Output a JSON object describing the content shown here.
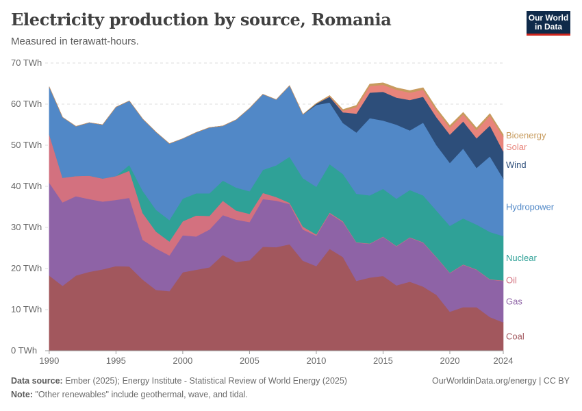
{
  "header": {
    "title": "Electricity production by source, Romania",
    "subtitle": "Measured in terawatt-hours."
  },
  "logo": {
    "line1": "Our World",
    "line2": "in Data"
  },
  "footer": {
    "source_label": "Data source:",
    "source_text": "Ember (2025); Energy Institute - Statistical Review of World Energy (2025)",
    "note_label": "Note:",
    "note_text": "\"Other renewables\" include geothermal, wave, and tidal.",
    "credit": "OurWorldinData.org/energy | CC BY"
  },
  "chart_data": {
    "type": "area",
    "stacked": true,
    "title": "Electricity production by source, Romania",
    "subtitle": "Measured in terawatt-hours.",
    "ylim": [
      0,
      70
    ],
    "yunit": "TWh",
    "y_ticks": [
      0,
      10,
      20,
      30,
      40,
      50,
      60,
      70
    ],
    "y_tick_labels": [
      "0 TWh",
      "10 TWh",
      "20 TWh",
      "30 TWh",
      "40 TWh",
      "50 TWh",
      "60 TWh",
      "70 TWh"
    ],
    "x_ticks": [
      1990,
      1995,
      2000,
      2005,
      2010,
      2015,
      2020,
      2024
    ],
    "x_tick_labels": [
      "1990",
      "1995",
      "2000",
      "2005",
      "2010",
      "2015",
      "2020",
      "2024"
    ],
    "x": [
      1990,
      1991,
      1992,
      1993,
      1994,
      1995,
      1996,
      1997,
      1998,
      1999,
      2000,
      2001,
      2002,
      2003,
      2004,
      2005,
      2006,
      2007,
      2008,
      2009,
      2010,
      2011,
      2012,
      2013,
      2014,
      2015,
      2016,
      2017,
      2018,
      2019,
      2020,
      2021,
      2022,
      2023,
      2024
    ],
    "series": [
      {
        "name": "Coal",
        "color": "#a2575d",
        "values": [
          18.3,
          15.8,
          18.3,
          19.2,
          19.8,
          20.6,
          20.5,
          17.3,
          14.8,
          14.5,
          19.1,
          19.7,
          20.3,
          23.3,
          21.6,
          22.0,
          25.3,
          25.2,
          25.9,
          21.9,
          20.6,
          24.8,
          22.8,
          17.0,
          17.8,
          18.2,
          15.9,
          16.8,
          15.6,
          13.6,
          9.5,
          10.6,
          10.6,
          8.2,
          6.9
        ]
      },
      {
        "name": "Gas",
        "color": "#8e63a6",
        "values": [
          22.6,
          20.3,
          19.3,
          17.7,
          16.5,
          16.1,
          16.7,
          9.7,
          10.1,
          8.7,
          9.0,
          8.1,
          9.2,
          9.7,
          10.3,
          9.3,
          11.6,
          11.3,
          9.8,
          7.6,
          7.4,
          8.6,
          8.5,
          9.3,
          8.2,
          9.5,
          9.5,
          10.7,
          10.7,
          9.1,
          9.4,
          10.3,
          9.1,
          9.1,
          10.1
        ]
      },
      {
        "name": "Oil",
        "color": "#d3717f",
        "values": [
          11.8,
          6.0,
          4.9,
          5.7,
          5.6,
          5.8,
          6.6,
          6.5,
          4.1,
          3.4,
          3.4,
          5.1,
          3.3,
          3.5,
          2.2,
          2.0,
          1.5,
          0.9,
          0.3,
          0.7,
          0.3,
          0.2,
          0.2,
          0.1,
          0.1,
          0.1,
          0.1,
          0.1,
          0.1,
          0.1,
          0.1,
          0.1,
          0.1,
          0.1,
          0.1
        ]
      },
      {
        "name": "Nuclear",
        "color": "#2fa197",
        "values": [
          0,
          0,
          0,
          0,
          0,
          0,
          1.4,
          5.4,
          5.3,
          5.2,
          5.5,
          5.4,
          5.5,
          4.9,
          5.6,
          5.5,
          5.6,
          7.7,
          11.2,
          11.8,
          11.6,
          11.8,
          11.5,
          11.8,
          11.7,
          11.6,
          11.5,
          11.5,
          11.4,
          11.3,
          11.4,
          11.2,
          10.9,
          11.5,
          10.8
        ]
      },
      {
        "name": "Hydropower",
        "color": "#5188c7",
        "values": [
          11.5,
          14.7,
          12.1,
          12.9,
          13.1,
          16.8,
          15.6,
          17.5,
          18.9,
          18.6,
          14.6,
          14.8,
          16.0,
          13.3,
          16.5,
          20.2,
          18.4,
          16.0,
          17.3,
          15.5,
          19.9,
          15.0,
          12.4,
          14.9,
          18.8,
          16.6,
          18.0,
          14.5,
          17.7,
          15.9,
          15.3,
          17.0,
          13.8,
          18.4,
          14.0
        ]
      },
      {
        "name": "Wind",
        "color": "#2d4e7a",
        "values": [
          0,
          0,
          0,
          0,
          0,
          0,
          0,
          0,
          0,
          0,
          0,
          0,
          0,
          0,
          0,
          0,
          0,
          0,
          0,
          0,
          0.3,
          1.4,
          2.6,
          4.6,
          6.2,
          7.0,
          6.6,
          7.4,
          6.3,
          6.8,
          6.9,
          6.6,
          7.2,
          7.5,
          6.6
        ]
      },
      {
        "name": "Solar",
        "color": "#e8847b",
        "values": [
          0,
          0,
          0,
          0,
          0,
          0,
          0,
          0,
          0,
          0,
          0,
          0,
          0,
          0,
          0,
          0,
          0,
          0,
          0,
          0,
          0,
          0.1,
          0.4,
          1.6,
          1.6,
          1.7,
          1.9,
          1.8,
          1.7,
          1.7,
          1.7,
          1.7,
          2.0,
          2.4,
          3.6
        ]
      },
      {
        "name": "Bioenergy",
        "color": "#c79b5e",
        "values": [
          0,
          0,
          0,
          0,
          0,
          0,
          0,
          0,
          0,
          0,
          0,
          0,
          0,
          0,
          0,
          0,
          0,
          0,
          0,
          0,
          0.1,
          0.2,
          0.3,
          0.4,
          0.5,
          0.5,
          0.5,
          0.5,
          0.5,
          0.5,
          0.5,
          0.5,
          0.5,
          0.5,
          0.5
        ]
      }
    ],
    "legend_position": "right",
    "gridlines": true
  }
}
